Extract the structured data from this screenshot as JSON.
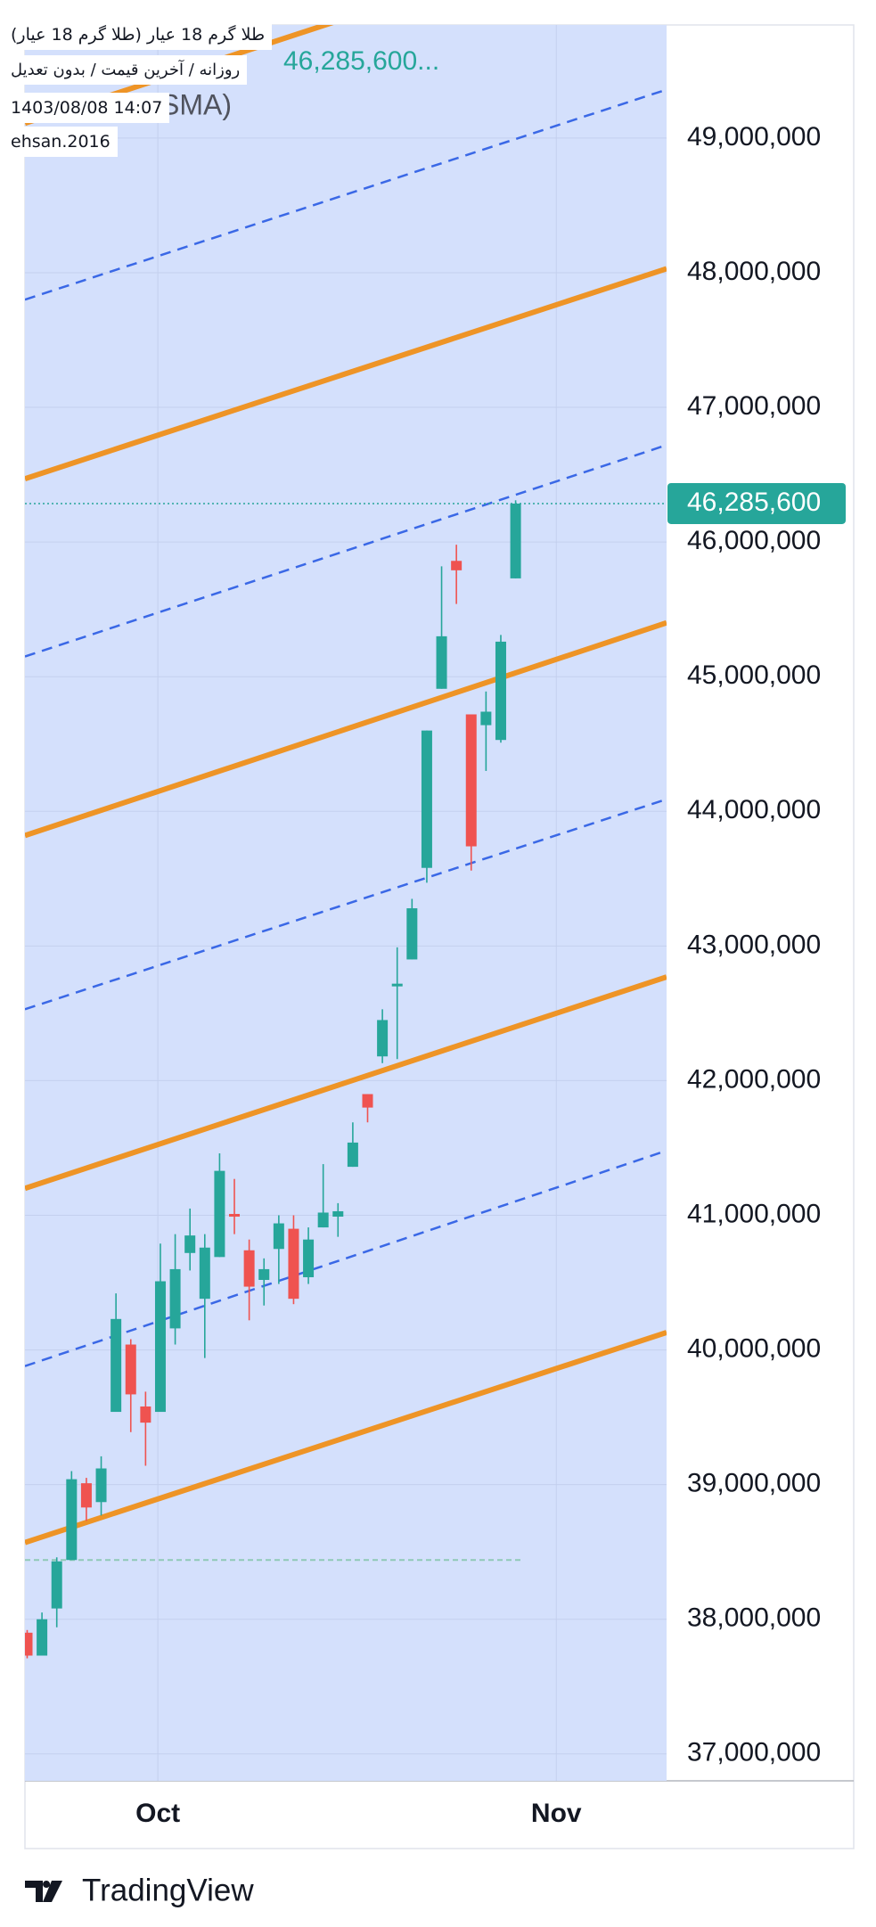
{
  "chart_data": {
    "type": "candlestick",
    "title": "طلا گرم 18 عیار (طلا گرم 18 عیار)",
    "subtitle": "روزانه / آخرین قیمت / بدون تعدیل",
    "timestamp": "1403/08/08 14:07",
    "author": "ehsan.2016",
    "header_value": "46,285,600...",
    "header_fragment": "SMA)",
    "branding": "TradingView",
    "x": [
      0,
      1,
      2,
      3,
      4,
      5,
      6,
      7,
      8,
      9,
      10,
      11,
      12,
      13,
      14,
      15,
      16,
      17,
      18,
      19,
      20,
      21,
      22,
      23,
      24,
      25,
      26,
      27,
      28,
      29,
      30,
      31,
      32,
      33
    ],
    "open": [
      37900000,
      37730000,
      38080000,
      38440000,
      39010000,
      38870000,
      39540000,
      40040000,
      39580000,
      39540000,
      40160000,
      40720000,
      40380000,
      40690000,
      41010000,
      40740000,
      40520000,
      40750000,
      40900000,
      40540000,
      40910000,
      40990000,
      41360000,
      41900000,
      42180000,
      42700000,
      42900000,
      43580000,
      44910000,
      45860000,
      44720000,
      44640000,
      44530000,
      45730000
    ],
    "high": [
      37920000,
      38050000,
      38460000,
      39100000,
      39050000,
      39210000,
      40420000,
      40080000,
      39690000,
      40790000,
      40860000,
      41050000,
      40860000,
      41460000,
      41270000,
      40820000,
      40680000,
      41000000,
      41000000,
      40910000,
      41380000,
      41090000,
      41690000,
      41900000,
      42530000,
      42990000,
      43350000,
      44600000,
      45820000,
      45980000,
      44720000,
      44890000,
      45310000,
      46310000
    ],
    "low": [
      37710000,
      37730000,
      37940000,
      38440000,
      38730000,
      38770000,
      39540000,
      39390000,
      39140000,
      39540000,
      40040000,
      40590000,
      39940000,
      40690000,
      40860000,
      40220000,
      40330000,
      40490000,
      40340000,
      40490000,
      40910000,
      40840000,
      41360000,
      41690000,
      42130000,
      42160000,
      42900000,
      43470000,
      44910000,
      45540000,
      43560000,
      44300000,
      44510000,
      45730000
    ],
    "close": [
      37730000,
      38000000,
      38430000,
      39040000,
      38830000,
      39120000,
      40230000,
      39670000,
      39460000,
      40510000,
      40600000,
      40850000,
      40760000,
      41330000,
      40990000,
      40470000,
      40600000,
      40940000,
      40380000,
      40820000,
      41020000,
      41030000,
      41540000,
      41800000,
      42450000,
      42720000,
      43280000,
      44600000,
      45300000,
      45790000,
      43740000,
      44740000,
      45260000,
      46285600
    ],
    "up_color": "#26a69a",
    "down_color": "#ef5350",
    "background": "#d4e0fc",
    "last_price": 46285600,
    "last_price_label": "46,285,600",
    "reference_line": 38440000,
    "channel_lines": [
      {
        "start": 38570000,
        "end": 40130000,
        "color": "#ee9426",
        "style": "solid"
      },
      {
        "start": 41200000,
        "end": 42770000,
        "color": "#ee9426",
        "style": "solid"
      },
      {
        "start": 43820000,
        "end": 45400000,
        "color": "#ee9426",
        "style": "solid"
      },
      {
        "start": 46470000,
        "end": 48030000,
        "color": "#ee9426",
        "style": "solid"
      },
      {
        "start": 49110000,
        "end": 50670000,
        "color": "#ee9426",
        "style": "solid"
      },
      {
        "start": 39880000,
        "end": 41480000,
        "color": "#3a68e6",
        "style": "dashed"
      },
      {
        "start": 42530000,
        "end": 44090000,
        "color": "#3a68e6",
        "style": "dashed"
      },
      {
        "start": 45150000,
        "end": 46720000,
        "color": "#3a68e6",
        "style": "dashed"
      },
      {
        "start": 47800000,
        "end": 49360000,
        "color": "#3a68e6",
        "style": "dashed"
      }
    ],
    "xlim": [
      -0.15,
      43.2
    ],
    "xticks": [
      {
        "value": 8.83,
        "label": "Oct"
      },
      {
        "value": 35.75,
        "label": "Nov"
      }
    ],
    "ylim": [
      36800000,
      49840000
    ],
    "yticks": [
      {
        "value": 37000000,
        "label": "37,000,000"
      },
      {
        "value": 38000000,
        "label": "38,000,000"
      },
      {
        "value": 39000000,
        "label": "39,000,000"
      },
      {
        "value": 40000000,
        "label": "40,000,000"
      },
      {
        "value": 41000000,
        "label": "41,000,000"
      },
      {
        "value": 42000000,
        "label": "42,000,000"
      },
      {
        "value": 43000000,
        "label": "43,000,000"
      },
      {
        "value": 44000000,
        "label": "44,000,000"
      },
      {
        "value": 45000000,
        "label": "45,000,000"
      },
      {
        "value": 46000000,
        "label": "46,000,000"
      },
      {
        "value": 47000000,
        "label": "47,000,000"
      },
      {
        "value": 48000000,
        "label": "48,000,000"
      },
      {
        "value": 49000000,
        "label": "49,000,000"
      }
    ],
    "grid": true
  }
}
